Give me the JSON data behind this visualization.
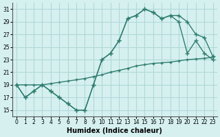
{
  "xlabel": "Humidex (Indice chaleur)",
  "bg_color": "#d6f0f0",
  "line_color": "#2e7d6e",
  "grid_color": "#b0d8d8",
  "xlim": [
    -0.5,
    23.5
  ],
  "ylim": [
    14,
    32
  ],
  "yticks": [
    15,
    17,
    19,
    21,
    23,
    25,
    27,
    29,
    31
  ],
  "xticks": [
    0,
    1,
    2,
    3,
    4,
    5,
    6,
    7,
    8,
    9,
    10,
    11,
    12,
    13,
    14,
    15,
    16,
    17,
    18,
    19,
    20,
    21,
    22,
    23
  ],
  "line1_x": [
    0,
    1,
    2,
    3,
    4,
    5,
    6,
    7,
    8,
    9,
    10,
    11,
    12,
    13,
    14,
    15,
    16,
    17,
    18,
    19,
    20,
    21,
    22,
    23
  ],
  "line1_y": [
    19,
    17,
    18,
    19,
    18,
    17,
    16,
    15,
    15,
    19,
    23,
    24,
    26,
    29.5,
    30,
    31,
    30.5,
    29.5,
    30,
    30,
    29,
    27,
    26.5,
    23.5
  ],
  "line2_x": [
    0,
    1,
    2,
    3,
    4,
    5,
    6,
    7,
    8,
    9,
    10,
    11,
    12,
    13,
    14,
    15,
    16,
    17,
    18,
    19,
    20,
    21,
    22,
    23
  ],
  "line2_y": [
    19,
    17,
    18,
    19,
    18,
    17,
    16,
    15,
    15,
    19,
    23,
    24,
    26,
    29.5,
    30,
    31,
    30.5,
    29.5,
    30,
    29,
    24,
    26,
    24,
    23
  ],
  "line3_x": [
    0,
    1,
    2,
    3,
    4,
    5,
    6,
    7,
    8,
    9,
    10,
    11,
    12,
    13,
    14,
    15,
    16,
    17,
    18,
    19,
    20,
    21,
    22,
    23
  ],
  "line3_y": [
    19,
    19,
    19,
    19,
    19.2,
    19.4,
    19.6,
    19.8,
    20,
    20.3,
    20.6,
    21,
    21.3,
    21.6,
    22,
    22.2,
    22.4,
    22.5,
    22.6,
    22.8,
    23,
    23.1,
    23.2,
    23.4
  ]
}
